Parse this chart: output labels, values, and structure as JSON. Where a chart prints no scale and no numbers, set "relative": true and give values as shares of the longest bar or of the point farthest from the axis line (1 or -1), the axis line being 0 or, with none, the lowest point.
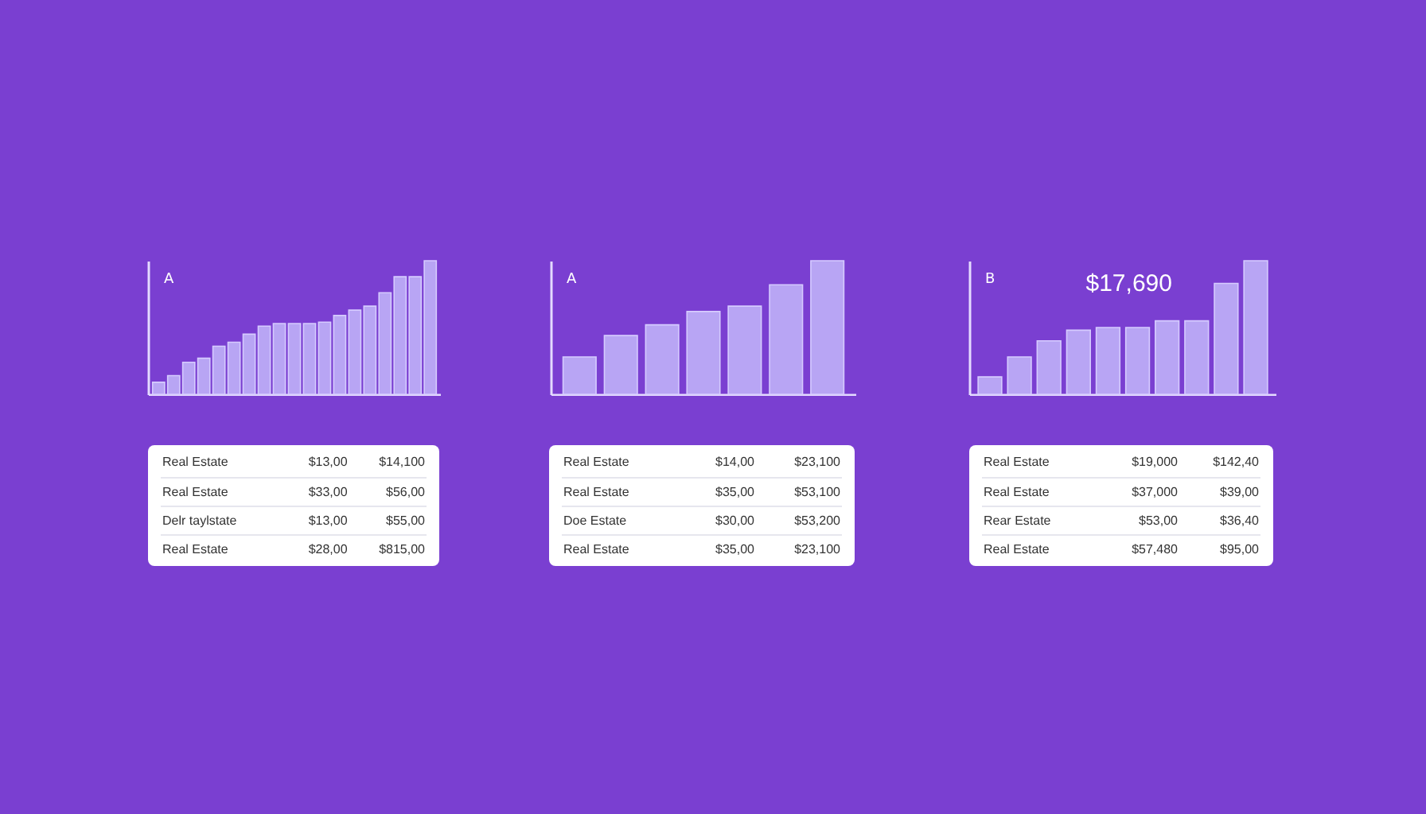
{
  "chart_data": [
    {
      "type": "bar",
      "relative": true,
      "color": "#b8a5f4",
      "annotations": [
        "A"
      ],
      "categories": [
        null,
        null,
        null,
        null,
        null,
        null,
        null,
        null,
        null,
        null,
        null,
        null,
        null,
        null,
        null,
        null,
        null,
        null,
        null
      ],
      "values": [
        0.09,
        0.14,
        0.24,
        0.27,
        0.36,
        0.39,
        0.45,
        0.51,
        0.53,
        0.53,
        0.53,
        0.54,
        0.59,
        0.63,
        0.66,
        0.76,
        0.88,
        0.88,
        1
      ]
    },
    {
      "type": "bar",
      "relative": true,
      "color": "#b8a5f4",
      "annotations": [
        "A"
      ],
      "categories": [
        null,
        null,
        null,
        null,
        null,
        null,
        null
      ],
      "values": [
        0.28,
        0.44,
        0.52,
        0.62,
        0.66,
        0.82,
        1
      ]
    },
    {
      "type": "bar",
      "relative": true,
      "color": "#b8a5f4",
      "annotations": [
        "B",
        "$17,690"
      ],
      "categories": [
        null,
        null,
        null,
        null,
        null,
        null,
        null,
        null,
        null,
        null
      ],
      "values": [
        0.13,
        0.28,
        0.4,
        0.48,
        0.5,
        0.5,
        0.55,
        0.55,
        0.83,
        1
      ]
    },
    {
      "type": "other",
      "annotations": [
        "Real Estate",
        "$13,00",
        "$14,100",
        "Real Estate",
        "$33,00",
        "$56,00",
        "Delr taylstate",
        "$13,00",
        "$55,00",
        "Real Estate",
        "$28,00",
        "$815,00"
      ]
    },
    {
      "type": "other",
      "annotations": [
        "Real Estate",
        "$14,00",
        "$23,100",
        "Real Estate",
        "$35,00",
        "$53,100",
        "Doe Estate",
        "$30,00",
        "$53,200",
        "Real Estate",
        "$35,00",
        "$23,100"
      ]
    },
    {
      "type": "other",
      "annotations": [
        "Real Estate",
        "$19,000",
        "$142,40",
        "Real Estate",
        "$37,000",
        "$39,00",
        "Rear Estate",
        "$53,00",
        "$36,40",
        "Real Estate",
        "$57,480",
        "$95,00"
      ]
    }
  ]
}
